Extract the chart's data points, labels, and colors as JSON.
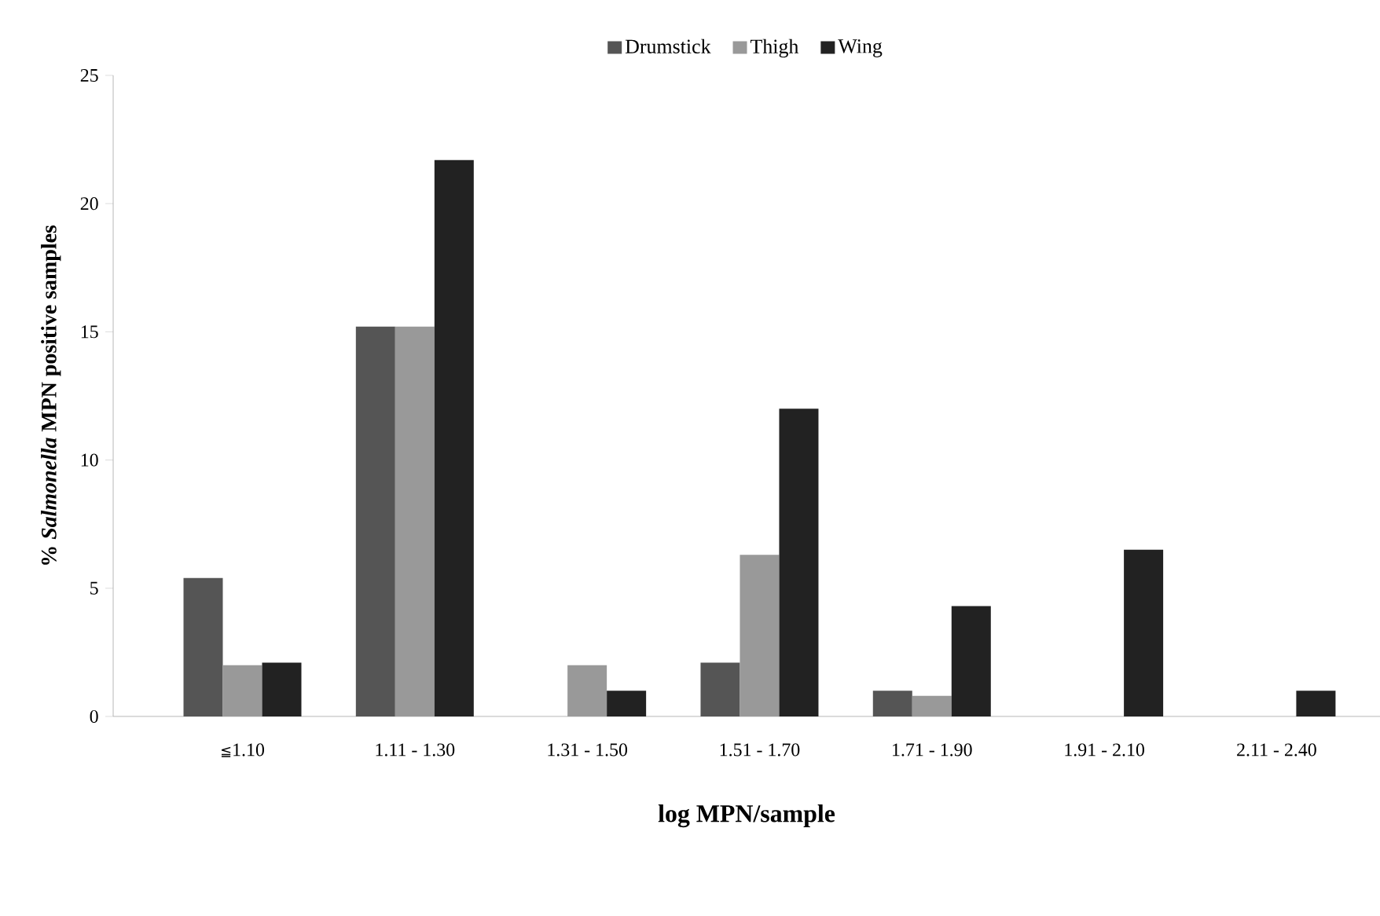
{
  "chart_data": {
    "type": "bar",
    "xlabel": "**log MPN/sample**",
    "ylabel": "**% *Salmonella* MPN positive samples**",
    "categories": [
      "≦1.10",
      "1.11 - 1.30",
      "1.31 - 1.50",
      "1.51 - 1.70",
      "1.71 - 1.90",
      "1.91 - 2.10",
      "2.11 - 2.40"
    ],
    "series": [
      {
        "name": "Drumstick",
        "color": "#555555",
        "values": [
          5.4,
          15.2,
          0,
          2.1,
          1.0,
          0,
          0
        ]
      },
      {
        "name": "Thigh",
        "color": "#999999",
        "values": [
          2.0,
          15.2,
          2.0,
          6.3,
          0.8,
          0,
          0
        ]
      },
      {
        "name": "Wing",
        "color": "#222222",
        "values": [
          2.1,
          21.7,
          1.0,
          12.0,
          4.3,
          6.5,
          1.0
        ]
      }
    ],
    "ylim": [
      0,
      25
    ],
    "yticks": [
      0,
      5,
      10,
      15,
      20,
      25
    ],
    "legend": "top",
    "grid": false
  }
}
